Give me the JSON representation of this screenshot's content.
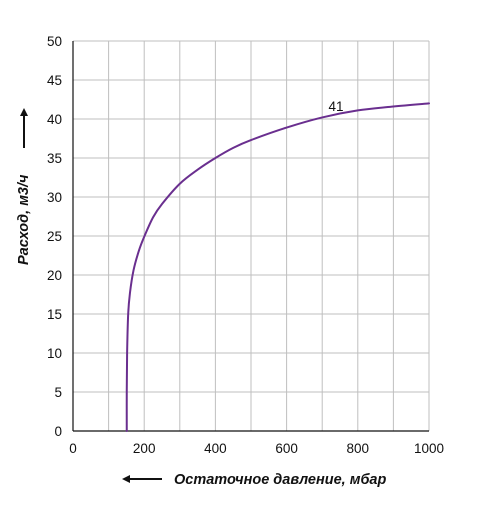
{
  "chart_data": {
    "type": "line",
    "title": "",
    "xlabel": "Остаточное давление, мбар",
    "ylabel": "Расход, м3/ч",
    "xlim": [
      0,
      1000
    ],
    "ylim": [
      0,
      50
    ],
    "xticks": [
      0,
      200,
      400,
      600,
      800,
      1000
    ],
    "yticks": [
      0,
      5,
      10,
      15,
      20,
      25,
      30,
      35,
      40,
      45,
      50
    ],
    "grid": true,
    "colors": {
      "series": "#6a2f8f",
      "grid": "#bfbfbf",
      "axis": "#111111"
    },
    "series": [
      {
        "name": "41",
        "x": [
          151,
          151,
          152,
          155,
          160,
          170,
          185,
          200,
          225,
          250,
          300,
          350,
          400,
          450,
          500,
          600,
          700,
          800,
          900,
          1000
        ],
        "y": [
          0,
          5,
          10,
          15,
          17.7,
          20.6,
          23.1,
          24.9,
          27.4,
          29.1,
          31.7,
          33.5,
          35.0,
          36.3,
          37.3,
          38.9,
          40.2,
          41.1,
          41.6,
          42.0
        ]
      }
    ]
  }
}
